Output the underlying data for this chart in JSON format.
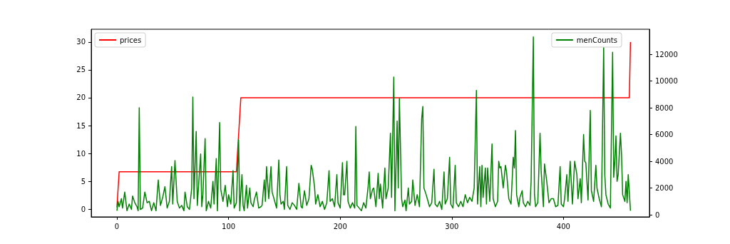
{
  "chart_data": {
    "type": "line",
    "xlim": [
      -23,
      477
    ],
    "xticks": [
      0,
      100,
      200,
      300,
      400
    ],
    "ylim": [
      -1.4,
      32.3
    ],
    "yticks": [
      0,
      5,
      10,
      15,
      20,
      25,
      30
    ],
    "y2lim": [
      -160,
      13870
    ],
    "y2ticks": [
      0,
      2000,
      4000,
      6000,
      8000,
      10000,
      12000
    ],
    "grid": false,
    "legend": "top",
    "marker": "none",
    "line_style": "solid",
    "series": [
      {
        "name": "prices",
        "color": "#ff0000",
        "x": [
          0,
          2,
          107,
          111,
          459,
          460
        ],
        "values": [
          0.3,
          6.7,
          6.7,
          20,
          20,
          30
        ]
      },
      {
        "name": "menCounts",
        "color": "#008000",
        "axis": "y2",
        "x": [
          0,
          1,
          2,
          4,
          5,
          7,
          9,
          11,
          13,
          14,
          16,
          18,
          19,
          20,
          21,
          23,
          25,
          27,
          29,
          31,
          33,
          35,
          37,
          39,
          41,
          43,
          45,
          47,
          49,
          50,
          52,
          54,
          56,
          58,
          60,
          61,
          63,
          65,
          67,
          68,
          69,
          71,
          72,
          73,
          75,
          76,
          77,
          79,
          80,
          82,
          84,
          86,
          87,
          89,
          90,
          92,
          93,
          95,
          97,
          99,
          100,
          102,
          104,
          105,
          107,
          109,
          110,
          112,
          113,
          114,
          116,
          117,
          119,
          120,
          122,
          123,
          125,
          127,
          129,
          130,
          132,
          133,
          134,
          136,
          138,
          139,
          141,
          143,
          145,
          146,
          147,
          149,
          150,
          152,
          153,
          155,
          157,
          159,
          161,
          163,
          165,
          166,
          168,
          170,
          172,
          174,
          175,
          177,
          178,
          180,
          182,
          184,
          186,
          188,
          190,
          191,
          193,
          195,
          197,
          198,
          200,
          202,
          203,
          204,
          206,
          207,
          209,
          211,
          213,
          214,
          215,
          217,
          219,
          221,
          223,
          225,
          226,
          227,
          229,
          230,
          232,
          234,
          235,
          236,
          238,
          240,
          241,
          243,
          245,
          246,
          248,
          249,
          251,
          252,
          253,
          255,
          256,
          258,
          259,
          261,
          262,
          264,
          265,
          267,
          269,
          271,
          273,
          274,
          275,
          277,
          278,
          280,
          282,
          284,
          285,
          287,
          289,
          291,
          293,
          294,
          296,
          298,
          299,
          301,
          303,
          304,
          306,
          308,
          310,
          312,
          314,
          316,
          318,
          320,
          322,
          323,
          325,
          326,
          327,
          328,
          330,
          331,
          332,
          334,
          336,
          337,
          339,
          341,
          342,
          343,
          344,
          346,
          348,
          349,
          351,
          353,
          355,
          356,
          357,
          358,
          360,
          361,
          363,
          364,
          366,
          368,
          370,
          371,
          373,
          374,
          375,
          377,
          379,
          380,
          382,
          383,
          385,
          387,
          389,
          391,
          393,
          395,
          397,
          398,
          400,
          401,
          403,
          404,
          406,
          408,
          410,
          412,
          413,
          415,
          416,
          418,
          419,
          420,
          422,
          424,
          425,
          427,
          429,
          430,
          432,
          434,
          436,
          437,
          438,
          440,
          442,
          444,
          445,
          446,
          447,
          448,
          449,
          451,
          452,
          453,
          455,
          456,
          457,
          458,
          460
        ],
        "values": [
          300,
          1000,
          600,
          1200,
          500,
          1700,
          300,
          800,
          400,
          1400,
          900,
          600,
          300,
          8000,
          400,
          500,
          1700,
          900,
          1000,
          300,
          900,
          300,
          2600,
          700,
          1300,
          2100,
          500,
          1000,
          3600,
          800,
          4050,
          1000,
          500,
          700,
          300,
          1700,
          600,
          400,
          2000,
          8800,
          1200,
          6230,
          700,
          2000,
          4550,
          600,
          1500,
          5700,
          300,
          1000,
          500,
          2500,
          800,
          4200,
          300,
          6900,
          1900,
          1000,
          2200,
          600,
          1500,
          800,
          3300,
          500,
          900,
          5600,
          300,
          3000,
          700,
          300,
          2200,
          500,
          2000,
          900,
          600,
          1100,
          1700,
          500,
          600,
          700,
          2600,
          1000,
          3600,
          1200,
          3600,
          1700,
          1100,
          500,
          4100,
          1500,
          800,
          1000,
          400,
          3600,
          700,
          400,
          900,
          700,
          400,
          2350,
          600,
          500,
          1800,
          700,
          1200,
          3700,
          3400,
          2100,
          800,
          1500,
          600,
          1000,
          400,
          900,
          3300,
          1000,
          1200,
          600,
          3000,
          900,
          500,
          3900,
          1500,
          1500,
          4000,
          1000,
          500,
          900,
          500,
          6600,
          700,
          500,
          300,
          900,
          500,
          2100,
          3200,
          1200,
          1900,
          2000,
          600,
          3100,
          1200,
          2300,
          500,
          3500,
          1200,
          2000,
          6100,
          1300,
          10300,
          300,
          7000,
          2000,
          8700,
          1200,
          600,
          1100,
          300,
          2000,
          800,
          1000,
          2600,
          700,
          1500,
          600,
          7200,
          8100,
          2000,
          1500,
          1200,
          600,
          900,
          3400,
          800,
          600,
          1000,
          400,
          3200,
          800,
          1200,
          4300,
          800,
          500,
          3700,
          900,
          600,
          1000,
          600,
          1500,
          900,
          1300,
          1000,
          2000,
          9300,
          800,
          3600,
          600,
          3700,
          1300,
          3500,
          800,
          3500,
          1000,
          5300,
          1200,
          600,
          1000,
          4000,
          3500,
          3600,
          2000,
          3700,
          3200,
          1200,
          800,
          4300,
          3500,
          6300,
          1500,
          600,
          1300,
          1800,
          900,
          600,
          1000,
          700,
          2500,
          13300,
          1500,
          600,
          900,
          6100,
          3300,
          600,
          3800,
          2500,
          900,
          1200,
          1200,
          600,
          700,
          3600,
          800,
          600,
          1200,
          3000,
          1000,
          4000,
          800,
          4000,
          3000,
          1200,
          2700,
          900,
          6000,
          4000,
          3900,
          1100,
          7800,
          1800,
          1000,
          3700,
          2000,
          1200,
          600,
          12500,
          3000,
          1500,
          800,
          500,
          12150,
          2800,
          4000,
          5900,
          2500,
          3000,
          6100,
          4500,
          1500,
          1000,
          2500,
          900,
          3000,
          300
        ]
      }
    ]
  }
}
